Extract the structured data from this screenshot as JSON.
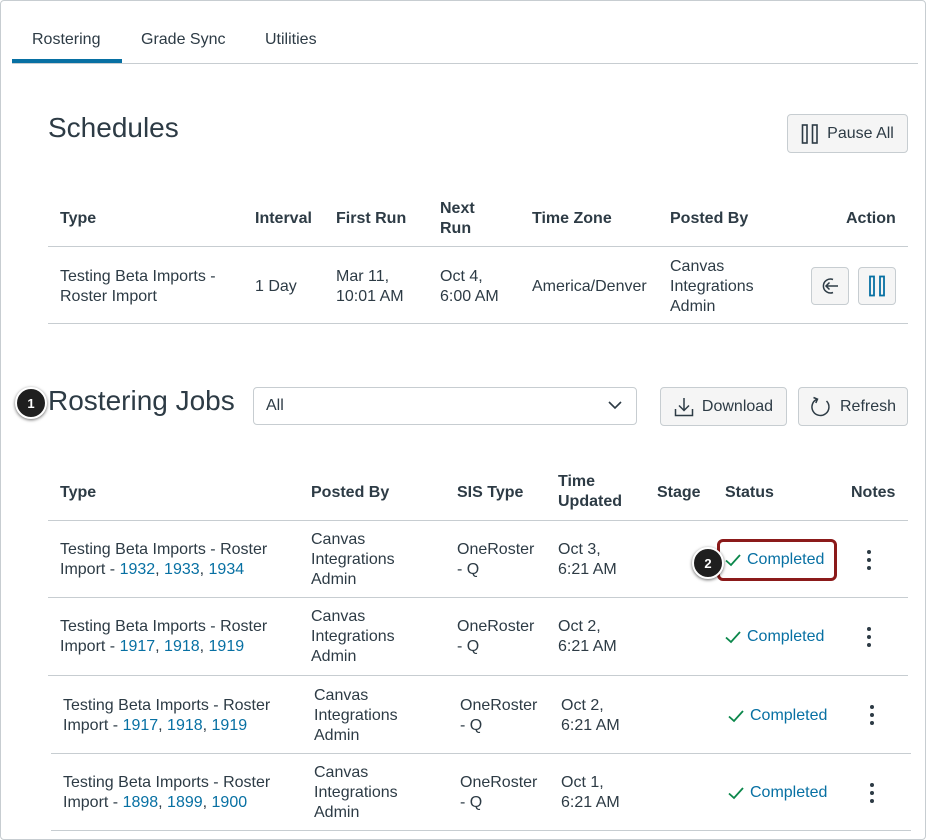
{
  "tabs": [
    {
      "label": "Rostering"
    },
    {
      "label": "Grade Sync"
    },
    {
      "label": "Utilities"
    }
  ],
  "schedules": {
    "title": "Schedules",
    "pause_all_label": "Pause All",
    "headers": {
      "type": "Type",
      "interval": "Interval",
      "first_run": "First Run",
      "next_run_1": "Next",
      "next_run_2": "Run",
      "time_zone": "Time Zone",
      "posted_by": "Posted By",
      "action": "Action"
    },
    "row": {
      "type_1": "Testing Beta Imports -",
      "type_2": "Roster Import",
      "interval": "1 Day",
      "first_run_1": "Mar 11,",
      "first_run_2": "10:01 AM",
      "next_run_1": "Oct 4,",
      "next_run_2": "6:00 AM",
      "time_zone": "America/Denver",
      "posted_by_1": "Canvas",
      "posted_by_2": "Integrations",
      "posted_by_3": "Admin"
    }
  },
  "jobs": {
    "title": "Rostering Jobs",
    "filter_value": "All",
    "download_label": "Download",
    "refresh_label": "Refresh",
    "headers": {
      "type": "Type",
      "posted_by": "Posted By",
      "sis_type": "SIS Type",
      "time_updated_1": "Time",
      "time_updated_2": "Updated",
      "stage": "Stage",
      "status": "Status",
      "notes": "Notes"
    },
    "rows": [
      {
        "type_1": "Testing Beta Imports - Roster",
        "type_2": "Import - ",
        "ids": [
          "1932",
          "1933",
          "1934"
        ],
        "posted_1": "Canvas",
        "posted_2": "Integrations",
        "posted_3": "Admin",
        "sis_1": "OneRoster",
        "sis_2": "- Q",
        "time_1": "Oct 3,",
        "time_2": "6:21 AM",
        "status": "Completed"
      },
      {
        "type_1": "Testing Beta Imports - Roster",
        "type_2": "Import - ",
        "ids": [
          "1917",
          "1918",
          "1919"
        ],
        "posted_1": "Canvas",
        "posted_2": "Integrations",
        "posted_3": "Admin",
        "sis_1": "OneRoster",
        "sis_2": "- Q",
        "time_1": "Oct 2,",
        "time_2": "6:21 AM",
        "status": "Completed"
      },
      {
        "type_1": "Testing Beta Imports - Roster",
        "type_2": "Import - ",
        "ids": [
          "1917",
          "1918",
          "1919"
        ],
        "posted_1": "Canvas",
        "posted_2": "Integrations",
        "posted_3": "Admin",
        "sis_1": "OneRoster",
        "sis_2": "- Q",
        "time_1": "Oct 2,",
        "time_2": "6:21 AM",
        "status": "Completed"
      },
      {
        "type_1": "Testing Beta Imports - Roster",
        "type_2": "Import - ",
        "ids": [
          "1898",
          "1899",
          "1900"
        ],
        "posted_1": "Canvas",
        "posted_2": "Integrations",
        "posted_3": "Admin",
        "sis_1": "OneRoster",
        "sis_2": "- Q",
        "time_1": "Oct 1,",
        "time_2": "6:21 AM",
        "status": "Completed"
      }
    ]
  },
  "callouts": {
    "one": "1",
    "two": "2"
  },
  "colors": {
    "link": "#0770a3",
    "success": "#0b874b",
    "callout_border": "#8b1a1a",
    "tab_active": "#0770a3"
  },
  "icons": {
    "pause_all": "pause-icon",
    "run_now": "sign-in-icon",
    "pause_schedule": "pause-icon",
    "download": "download-icon",
    "refresh": "refresh-icon",
    "filter": "chevron-down-icon",
    "status": "check-icon",
    "notes": "kebab-menu-icon"
  }
}
